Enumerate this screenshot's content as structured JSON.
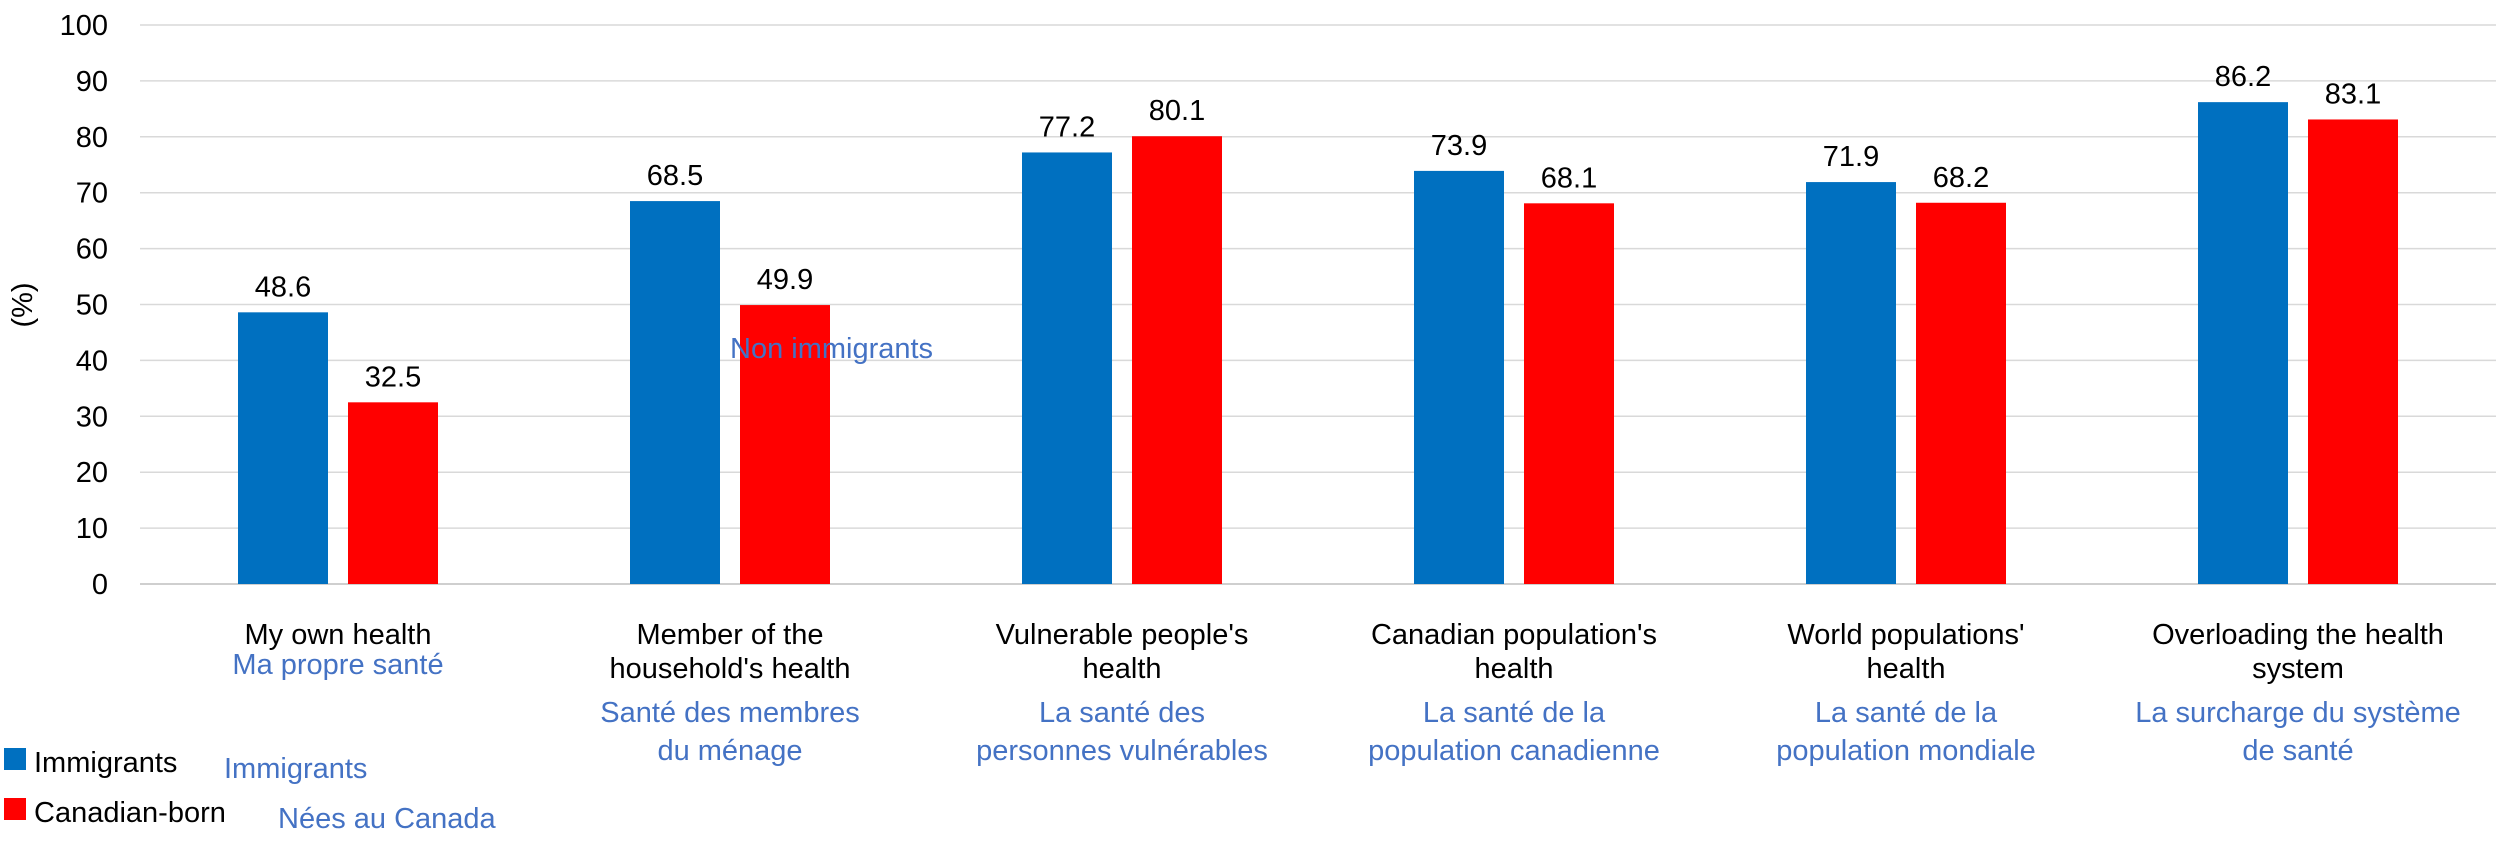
{
  "chart_data": {
    "type": "bar",
    "ylabel": "(%)",
    "ylim": [
      0,
      100
    ],
    "yticks": [
      0,
      10,
      20,
      30,
      40,
      50,
      60,
      70,
      80,
      90,
      100
    ],
    "grid": true,
    "legend_position": "bottom-left",
    "categories": [
      {
        "en": [
          "My own health"
        ],
        "fr": [
          "Ma propre santé"
        ]
      },
      {
        "en": [
          "Member of the",
          "household's health"
        ],
        "fr": [
          "Santé des membres",
          "du ménage"
        ]
      },
      {
        "en": [
          "Vulnerable people's",
          "health"
        ],
        "fr": [
          "La santé des",
          "personnes vulnérables"
        ]
      },
      {
        "en": [
          "Canadian population's",
          "health"
        ],
        "fr": [
          "La santé de la",
          "population canadienne"
        ]
      },
      {
        "en": [
          "World populations'",
          "health"
        ],
        "fr": [
          "La santé de la",
          "population mondiale"
        ]
      },
      {
        "en": [
          "Overloading the health",
          "system"
        ],
        "fr": [
          "La surcharge du système",
          "de santé"
        ]
      }
    ],
    "series": [
      {
        "name": "Immigrants",
        "name_fr": "Immigrants",
        "color": "#0070C0",
        "values": [
          48.6,
          68.5,
          77.2,
          73.9,
          71.9,
          86.2
        ]
      },
      {
        "name": "Canadian-born",
        "name_fr": "Nées au Canada",
        "color": "#FF0000",
        "values": [
          32.5,
          49.9,
          80.1,
          68.1,
          68.2,
          83.1
        ]
      }
    ],
    "annotation": "Non immigrants"
  }
}
